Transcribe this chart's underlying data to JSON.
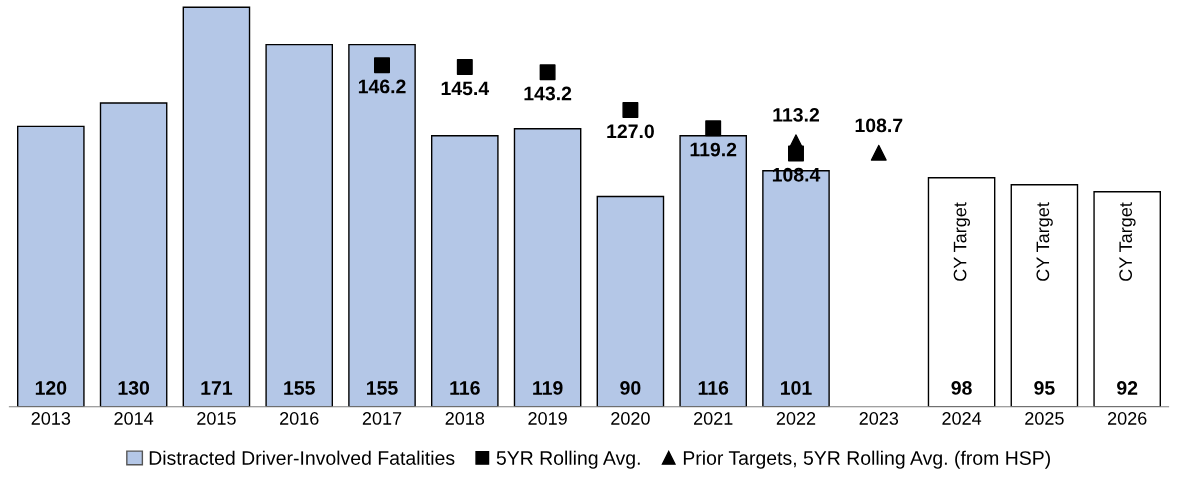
{
  "chart_data": {
    "type": "bar",
    "categories": [
      "2013",
      "2014",
      "2015",
      "2016",
      "2017",
      "2018",
      "2019",
      "2020",
      "2021",
      "2022",
      "2023",
      "2024",
      "2025",
      "2026"
    ],
    "ylim": [
      0,
      172
    ],
    "tick_labels": "x",
    "grid": false,
    "legend": "bottom",
    "series": [
      {
        "name": "Distracted Driver-Involved Fatalities",
        "color": "#b4c7e7",
        "colors": [
          "#b4c7e7",
          "#b4c7e7",
          "#b4c7e7",
          "#b4c7e7",
          "#b4c7e7",
          "#b4c7e7",
          "#b4c7e7",
          "#b4c7e7",
          "#b4c7e7",
          "#b4c7e7",
          null,
          "#ffffff",
          "#ffffff",
          "#ffffff"
        ],
        "values": [
          120,
          130,
          171,
          155,
          155,
          116,
          119,
          90,
          116,
          101,
          null,
          98,
          95,
          92
        ],
        "value_labels": [
          "120",
          "130",
          "171",
          "155",
          "155",
          "116",
          "119",
          "90",
          "116",
          "101",
          null,
          "98",
          "95",
          "92"
        ]
      },
      {
        "name": "5YR Rolling Avg.",
        "type": "scatter",
        "marker": "square",
        "color": "#000000",
        "values": [
          null,
          null,
          null,
          null,
          146.2,
          145.4,
          143.2,
          127.0,
          119.2,
          108.4,
          null,
          null,
          null,
          null
        ],
        "value_labels": [
          null,
          null,
          null,
          null,
          "146.2",
          "145.4",
          "143.2",
          "127.0",
          "119.2",
          "108.4",
          null,
          null,
          null,
          null
        ]
      },
      {
        "name": "Prior Targets, 5YR Rolling Avg. (from HSP)",
        "type": "scatter",
        "marker": "triangle",
        "color": "#000000",
        "values": [
          null,
          null,
          null,
          null,
          null,
          null,
          null,
          null,
          null,
          113.2,
          108.7,
          null,
          null,
          null
        ],
        "value_labels": [
          null,
          null,
          null,
          null,
          null,
          null,
          null,
          null,
          null,
          "113.2",
          "108.7",
          null,
          null,
          null
        ]
      }
    ],
    "annotations": [
      "CY Target",
      "CY Target",
      "CY Target"
    ]
  }
}
